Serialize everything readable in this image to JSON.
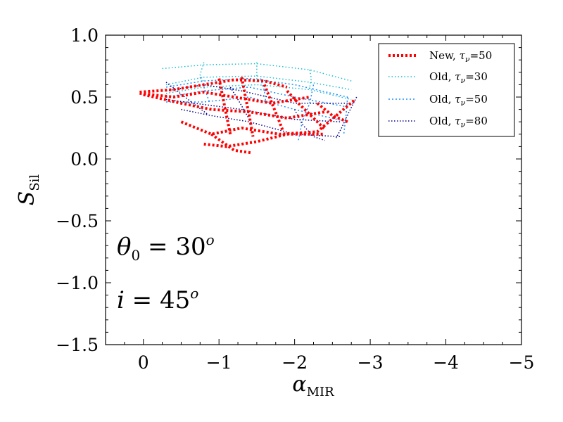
{
  "chart_data": {
    "type": "line",
    "xlabel": "α",
    "xlabel_sub": "MIR",
    "ylabel": "S",
    "ylabel_sub": "Sil",
    "xlim": [
      0.5,
      -5
    ],
    "ylim": [
      -1.5,
      1.0
    ],
    "xticks": [
      0,
      -1,
      -2,
      -3,
      -4,
      -5
    ],
    "xtick_labels": [
      "0",
      "−1",
      "−2",
      "−3",
      "−4",
      "−5"
    ],
    "yticks": [
      1.0,
      0.5,
      0.0,
      -0.5,
      -1.0,
      -1.5
    ],
    "ytick_labels": [
      "1.0",
      "0.5",
      "0.0",
      "−0.5",
      "−1.0",
      "−1.5"
    ],
    "legend_position": "top-right",
    "annotations": [
      {
        "id": "theta",
        "var": "θ",
        "sub": "0",
        "eq": " = 30",
        "sup": "o"
      },
      {
        "id": "incl",
        "var": "i",
        "sub": "",
        "eq": " = 45",
        "sup": "o"
      }
    ],
    "series": [
      {
        "name": "New, τν=50",
        "legend_prefix": "New, ",
        "legend_sym": "τ",
        "legend_sub": "ν",
        "legend_suffix": "=50",
        "color": "#ff0000",
        "lines": [
          {
            "x": [
              0.05,
              -0.4,
              -0.8,
              -1.2,
              -1.6,
              -1.9
            ],
            "y": [
              0.54,
              0.56,
              0.6,
              0.64,
              0.63,
              0.58
            ]
          },
          {
            "x": [
              0.05,
              -0.4,
              -0.8,
              -1.2,
              -1.7,
              -2.2
            ],
            "y": [
              0.53,
              0.5,
              0.54,
              0.5,
              0.45,
              0.5
            ]
          },
          {
            "x": [
              0.0,
              -0.5,
              -0.9,
              -1.4,
              -1.9,
              -2.4
            ],
            "y": [
              0.52,
              0.45,
              0.4,
              0.38,
              0.33,
              0.38
            ]
          },
          {
            "x": [
              -0.5,
              -0.9,
              -1.3,
              -1.8,
              -2.3,
              -2.8
            ],
            "y": [
              0.3,
              0.2,
              0.25,
              0.2,
              0.22,
              0.48
            ]
          },
          {
            "x": [
              -0.8,
              -1.1,
              -1.5,
              -1.9,
              -2.4
            ],
            "y": [
              0.12,
              0.1,
              0.14,
              0.2,
              0.2
            ]
          },
          {
            "x": [
              -0.9,
              -1.2,
              -1.42
            ],
            "y": [
              0.2,
              0.07,
              0.05
            ]
          },
          {
            "x": [
              -1.0,
              -1.05,
              -1.1,
              -1.15
            ],
            "y": [
              0.65,
              0.5,
              0.35,
              0.2
            ]
          },
          {
            "x": [
              -1.3,
              -1.35,
              -1.4,
              -1.45
            ],
            "y": [
              0.66,
              0.5,
              0.35,
              0.18
            ]
          },
          {
            "x": [
              -1.6,
              -1.7,
              -1.8,
              -1.85
            ],
            "y": [
              0.6,
              0.45,
              0.3,
              0.22
            ]
          },
          {
            "x": [
              -1.9,
              -2.05,
              -2.25,
              -2.4
            ],
            "y": [
              0.55,
              0.45,
              0.33,
              0.24
            ]
          },
          {
            "x": [
              -2.3,
              -2.5,
              -2.7
            ],
            "y": [
              0.45,
              0.35,
              0.3
            ]
          }
        ]
      },
      {
        "name": "Old, τν=30",
        "legend_prefix": "Old, ",
        "legend_sym": "τ",
        "legend_sub": "ν",
        "legend_suffix": "=30",
        "color": "#17becf",
        "lines": [
          {
            "x": [
              -0.25,
              -0.8,
              -1.5,
              -2.2,
              -2.75
            ],
            "y": [
              0.73,
              0.76,
              0.77,
              0.72,
              0.63
            ]
          },
          {
            "x": [
              -0.3,
              -0.8,
              -1.5,
              -2.2,
              -2.75
            ],
            "y": [
              0.6,
              0.66,
              0.67,
              0.62,
              0.56
            ]
          },
          {
            "x": [
              -0.3,
              -0.8,
              -1.5,
              -2.2,
              -2.75
            ],
            "y": [
              0.53,
              0.58,
              0.6,
              0.56,
              0.48
            ]
          },
          {
            "x": [
              -0.8,
              -0.75,
              -0.8
            ],
            "y": [
              0.78,
              0.68,
              0.62
            ]
          },
          {
            "x": [
              -1.5,
              -1.5,
              -1.5
            ],
            "y": [
              0.78,
              0.7,
              0.62
            ]
          },
          {
            "x": [
              -2.2,
              -2.22,
              -2.2
            ],
            "y": [
              0.72,
              0.65,
              0.58
            ]
          }
        ]
      },
      {
        "name": "Old, τν=50",
        "legend_prefix": "Old, ",
        "legend_sym": "τ",
        "legend_sub": "ν",
        "legend_suffix": "=50",
        "color": "#1f8fff",
        "lines": [
          {
            "x": [
              -0.3,
              -0.8,
              -1.4,
              -2.0,
              -2.7
            ],
            "y": [
              0.58,
              0.63,
              0.65,
              0.6,
              0.5
            ]
          },
          {
            "x": [
              -0.3,
              -0.8,
              -1.4,
              -2.0,
              -2.7
            ],
            "y": [
              0.5,
              0.55,
              0.58,
              0.5,
              0.42
            ]
          },
          {
            "x": [
              -0.3,
              -0.8,
              -1.4,
              -2.0,
              -2.7
            ],
            "y": [
              0.46,
              0.46,
              0.5,
              0.4,
              0.3
            ]
          },
          {
            "x": [
              -0.75,
              -0.82,
              -0.88
            ],
            "y": [
              0.66,
              0.55,
              0.45
            ]
          },
          {
            "x": [
              -1.55,
              -1.6,
              -1.62
            ],
            "y": [
              0.65,
              0.55,
              0.45
            ]
          },
          {
            "x": [
              -2.25,
              -2.2,
              -2.1,
              -2.05
            ],
            "y": [
              0.6,
              0.45,
              0.3,
              0.15
            ]
          },
          {
            "x": [
              -2.7,
              -2.68,
              -2.65
            ],
            "y": [
              0.5,
              0.35,
              0.2
            ]
          }
        ]
      },
      {
        "name": "Old, τν=80",
        "legend_prefix": "Old, ",
        "legend_sym": "τ",
        "legend_sub": "ν",
        "legend_suffix": "=80",
        "color": "#00008b",
        "lines": [
          {
            "x": [
              -0.3,
              -0.8,
              -1.3,
              -2.0,
              -2.8
            ],
            "y": [
              0.55,
              0.6,
              0.55,
              0.45,
              0.45
            ]
          },
          {
            "x": [
              -0.3,
              -0.8,
              -1.3,
              -2.0,
              -2.6
            ],
            "y": [
              0.48,
              0.44,
              0.4,
              0.32,
              0.3
            ]
          },
          {
            "x": [
              -0.5,
              -0.9,
              -1.4,
              -2.0,
              -2.6
            ],
            "y": [
              0.4,
              0.35,
              0.3,
              0.2,
              0.18
            ]
          },
          {
            "x": [
              -0.3,
              -0.55,
              -0.85
            ],
            "y": [
              0.62,
              0.5,
              0.36
            ]
          },
          {
            "x": [
              -1.15,
              -1.28,
              -1.4
            ],
            "y": [
              0.58,
              0.45,
              0.32
            ]
          },
          {
            "x": [
              -2.0,
              -2.1,
              -2.25,
              -2.4
            ],
            "y": [
              0.4,
              0.28,
              0.18,
              0.15
            ]
          },
          {
            "x": [
              -2.82,
              -2.72,
              -2.62,
              -2.55
            ],
            "y": [
              0.5,
              0.38,
              0.25,
              0.17
            ]
          }
        ]
      }
    ]
  }
}
